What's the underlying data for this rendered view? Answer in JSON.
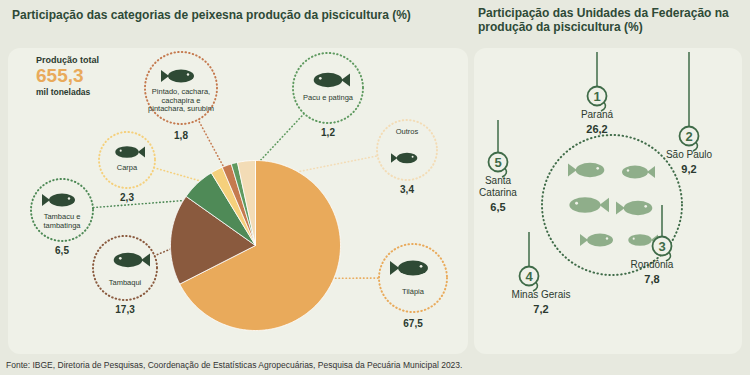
{
  "chart_data": [
    {
      "type": "pie",
      "title": "Participação das categorias de peixesna produção da piscicultura (%)",
      "categories": [
        "Tilápia",
        "Tambaqui",
        "Tambacu e tambatinga",
        "Carpa",
        "Pintado, cachara, cachapira e pintachara, surubim",
        "Pacu e patinga",
        "Outros"
      ],
      "values": [
        67.5,
        17.3,
        6.5,
        2.3,
        1.8,
        1.2,
        3.4
      ],
      "value_labels": [
        "67,5",
        "17,3",
        "6,5",
        "2,3",
        "1,8",
        "1,2",
        "3,4"
      ],
      "colors": [
        "#e9aa5b",
        "#8a5a3e",
        "#4f8a57",
        "#f5d07c",
        "#c57a4f",
        "#5f9a60",
        "#f3dcb6"
      ],
      "data_labels": true,
      "annotations": [
        "Produção total",
        "655,3",
        "mil toneladas"
      ]
    },
    {
      "type": "ranking",
      "title": "Participação das Unidades da Federação na produção da piscicultura (%)",
      "categories": [
        "Paraná",
        "São Paulo",
        "Rondônia",
        "Minas Gerais",
        "Santa Catarina"
      ],
      "ranks": [
        1,
        2,
        3,
        4,
        5
      ],
      "values": [
        26.2,
        9.2,
        7.8,
        7.2,
        6.5
      ],
      "value_labels": [
        "26,2",
        "9,2",
        "7,8",
        "7,2",
        "6,5"
      ],
      "data_labels": true,
      "color": "#3f6b48"
    }
  ],
  "source": "Fonte: IBGE, Diretoria de Pesquisas, Coordenação de Estatísticas Agropecuárias, Pesquisa da Pecuária Municipal 2023."
}
